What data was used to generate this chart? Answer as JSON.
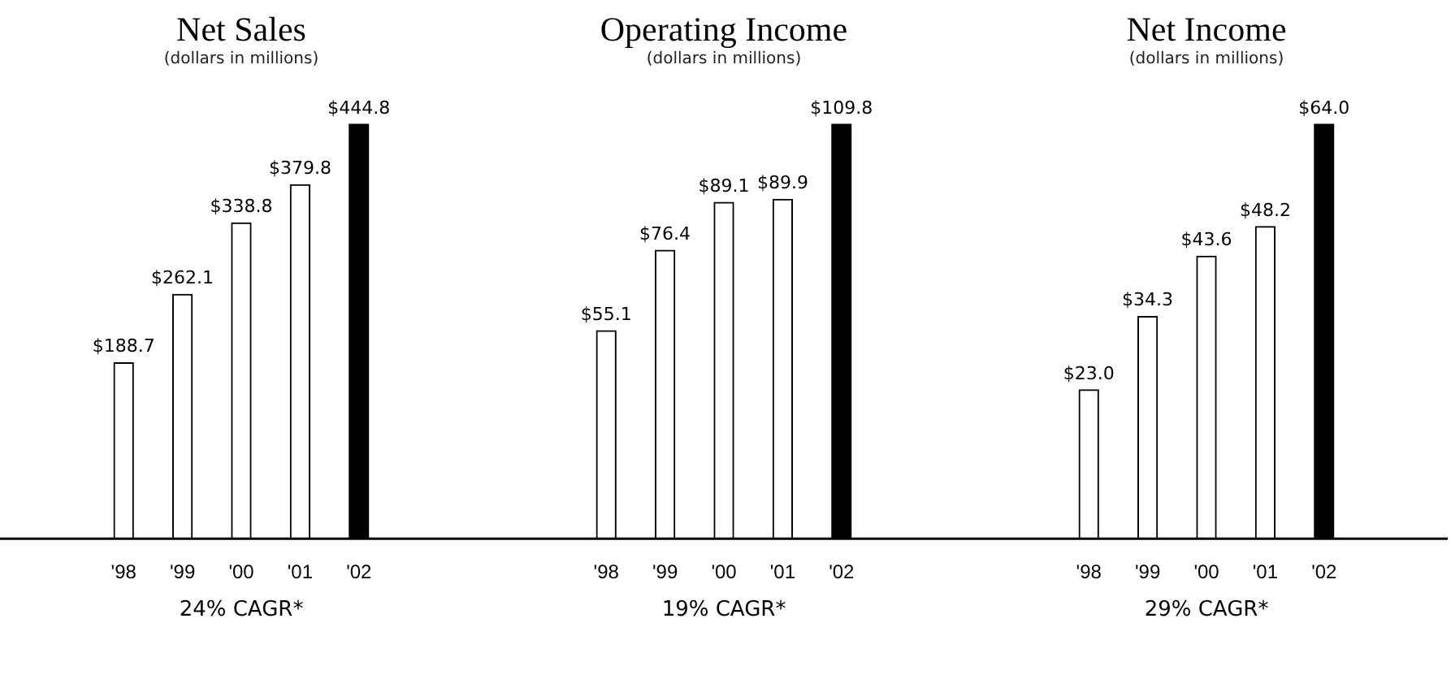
{
  "chart_data": [
    {
      "type": "bar",
      "title": "Net Sales",
      "subtitle": "(dollars in millions)",
      "categories": [
        "'98",
        "'99",
        "'00",
        "'01",
        "'02"
      ],
      "values": [
        188.7,
        262.1,
        338.8,
        379.8,
        444.8
      ],
      "colors": [
        "#ffffff",
        "#ffffff",
        "#ffffff",
        "#ffffff",
        "#000000"
      ],
      "value_labels": [
        "$188.7",
        "$262.1",
        "$338.8",
        "$379.8",
        "$444.8"
      ],
      "annotations": [
        "24% CAGR*"
      ]
    },
    {
      "type": "bar",
      "title": "Operating Income",
      "subtitle": "(dollars in millions)",
      "categories": [
        "'98",
        "'99",
        "'00",
        "'01",
        "'02"
      ],
      "values": [
        55.1,
        76.4,
        89.1,
        89.9,
        109.8
      ],
      "colors": [
        "#ffffff",
        "#ffffff",
        "#ffffff",
        "#ffffff",
        "#000000"
      ],
      "value_labels": [
        "$55.1",
        "$76.4",
        "$89.1",
        "$89.9",
        "$109.8"
      ],
      "annotations": [
        "19% CAGR*"
      ]
    },
    {
      "type": "bar",
      "title": "Net Income",
      "subtitle": "(dollars in millions)",
      "categories": [
        "'98",
        "'99",
        "'00",
        "'01",
        "'02"
      ],
      "values": [
        23.0,
        34.3,
        43.6,
        48.2,
        64.0
      ],
      "colors": [
        "#ffffff",
        "#ffffff",
        "#ffffff",
        "#ffffff",
        "#000000"
      ],
      "value_labels": [
        "$23.0",
        "$34.3",
        "$43.6",
        "$48.2",
        "$64.0"
      ],
      "annotations": [
        "29% CAGR*"
      ]
    }
  ]
}
